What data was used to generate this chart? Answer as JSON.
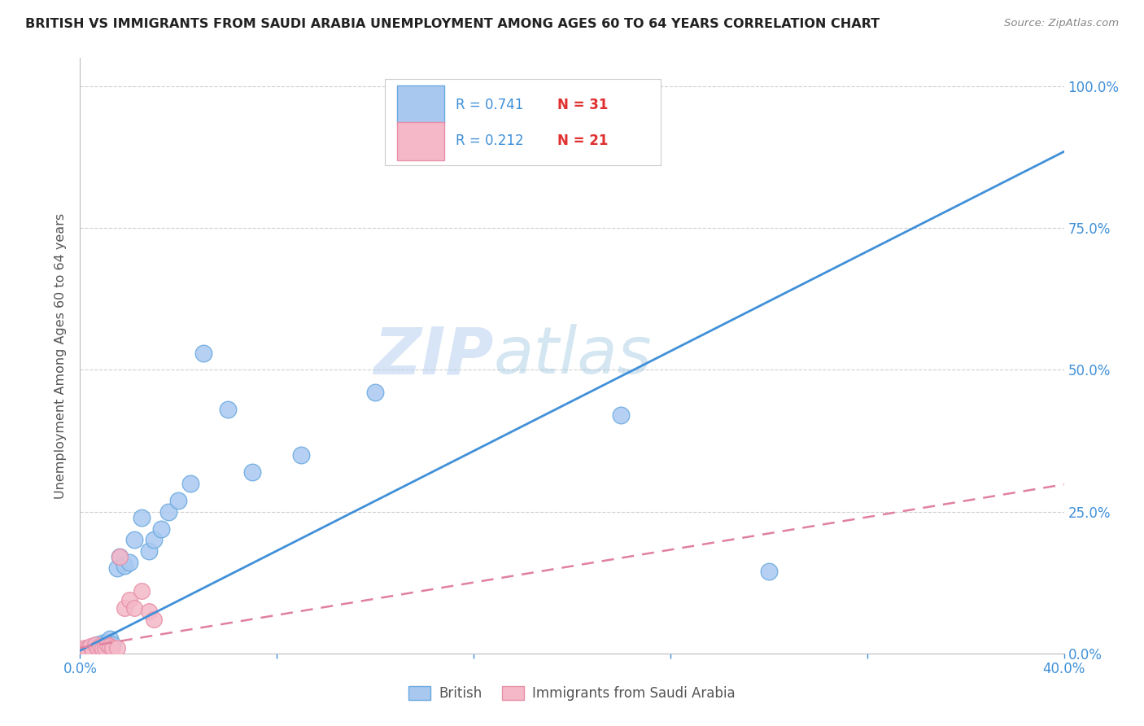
{
  "title": "BRITISH VS IMMIGRANTS FROM SAUDI ARABIA UNEMPLOYMENT AMONG AGES 60 TO 64 YEARS CORRELATION CHART",
  "source": "Source: ZipAtlas.com",
  "ylabel": "Unemployment Among Ages 60 to 64 years",
  "xlim": [
    0.0,
    0.4
  ],
  "ylim": [
    0.0,
    1.05
  ],
  "xticks": [
    0.0,
    0.08,
    0.16,
    0.24,
    0.32,
    0.4
  ],
  "yticks": [
    0.0,
    0.25,
    0.5,
    0.75,
    1.0
  ],
  "ytick_labels": [
    "0.0%",
    "25.0%",
    "50.0%",
    "75.0%",
    "100.0%"
  ],
  "xtick_labels": [
    "0.0%",
    "",
    "",
    "",
    "",
    "40.0%"
  ],
  "british_color": "#a8c8f0",
  "saudi_color": "#f4b8c8",
  "british_edge_color": "#6aaae0",
  "saudi_edge_color": "#e890a8",
  "british_line_color": "#4090d8",
  "saudi_line_color": "#e080a0",
  "legend_R_british": "R = 0.741",
  "legend_N_british": "N = 31",
  "legend_R_saudi": "R = 0.212",
  "legend_N_saudi": "N = 21",
  "watermark_zip": "ZIP",
  "watermark_atlas": "atlas",
  "british_slope": 2.2,
  "british_intercept": 0.005,
  "saudi_slope": 0.72,
  "saudi_intercept": 0.01,
  "british_x": [
    0.002,
    0.003,
    0.004,
    0.005,
    0.006,
    0.007,
    0.008,
    0.009,
    0.01,
    0.011,
    0.012,
    0.013,
    0.015,
    0.016,
    0.018,
    0.02,
    0.022,
    0.025,
    0.028,
    0.03,
    0.033,
    0.036,
    0.04,
    0.045,
    0.05,
    0.06,
    0.07,
    0.09,
    0.12,
    0.22,
    0.28
  ],
  "british_y": [
    0.005,
    0.008,
    0.01,
    0.005,
    0.012,
    0.015,
    0.008,
    0.018,
    0.01,
    0.02,
    0.025,
    0.015,
    0.15,
    0.17,
    0.155,
    0.16,
    0.2,
    0.24,
    0.18,
    0.2,
    0.22,
    0.25,
    0.27,
    0.3,
    0.53,
    0.43,
    0.32,
    0.35,
    0.46,
    0.42,
    0.145
  ],
  "saudi_x": [
    0.001,
    0.002,
    0.003,
    0.004,
    0.005,
    0.006,
    0.007,
    0.008,
    0.009,
    0.01,
    0.011,
    0.012,
    0.013,
    0.015,
    0.016,
    0.018,
    0.02,
    0.022,
    0.025,
    0.028,
    0.03
  ],
  "saudi_y": [
    0.005,
    0.01,
    0.008,
    0.012,
    0.006,
    0.015,
    0.01,
    0.012,
    0.008,
    0.01,
    0.015,
    0.012,
    0.01,
    0.01,
    0.17,
    0.08,
    0.095,
    0.08,
    0.11,
    0.075,
    0.06
  ],
  "background_color": "#ffffff",
  "grid_color": "#d0d0d0"
}
